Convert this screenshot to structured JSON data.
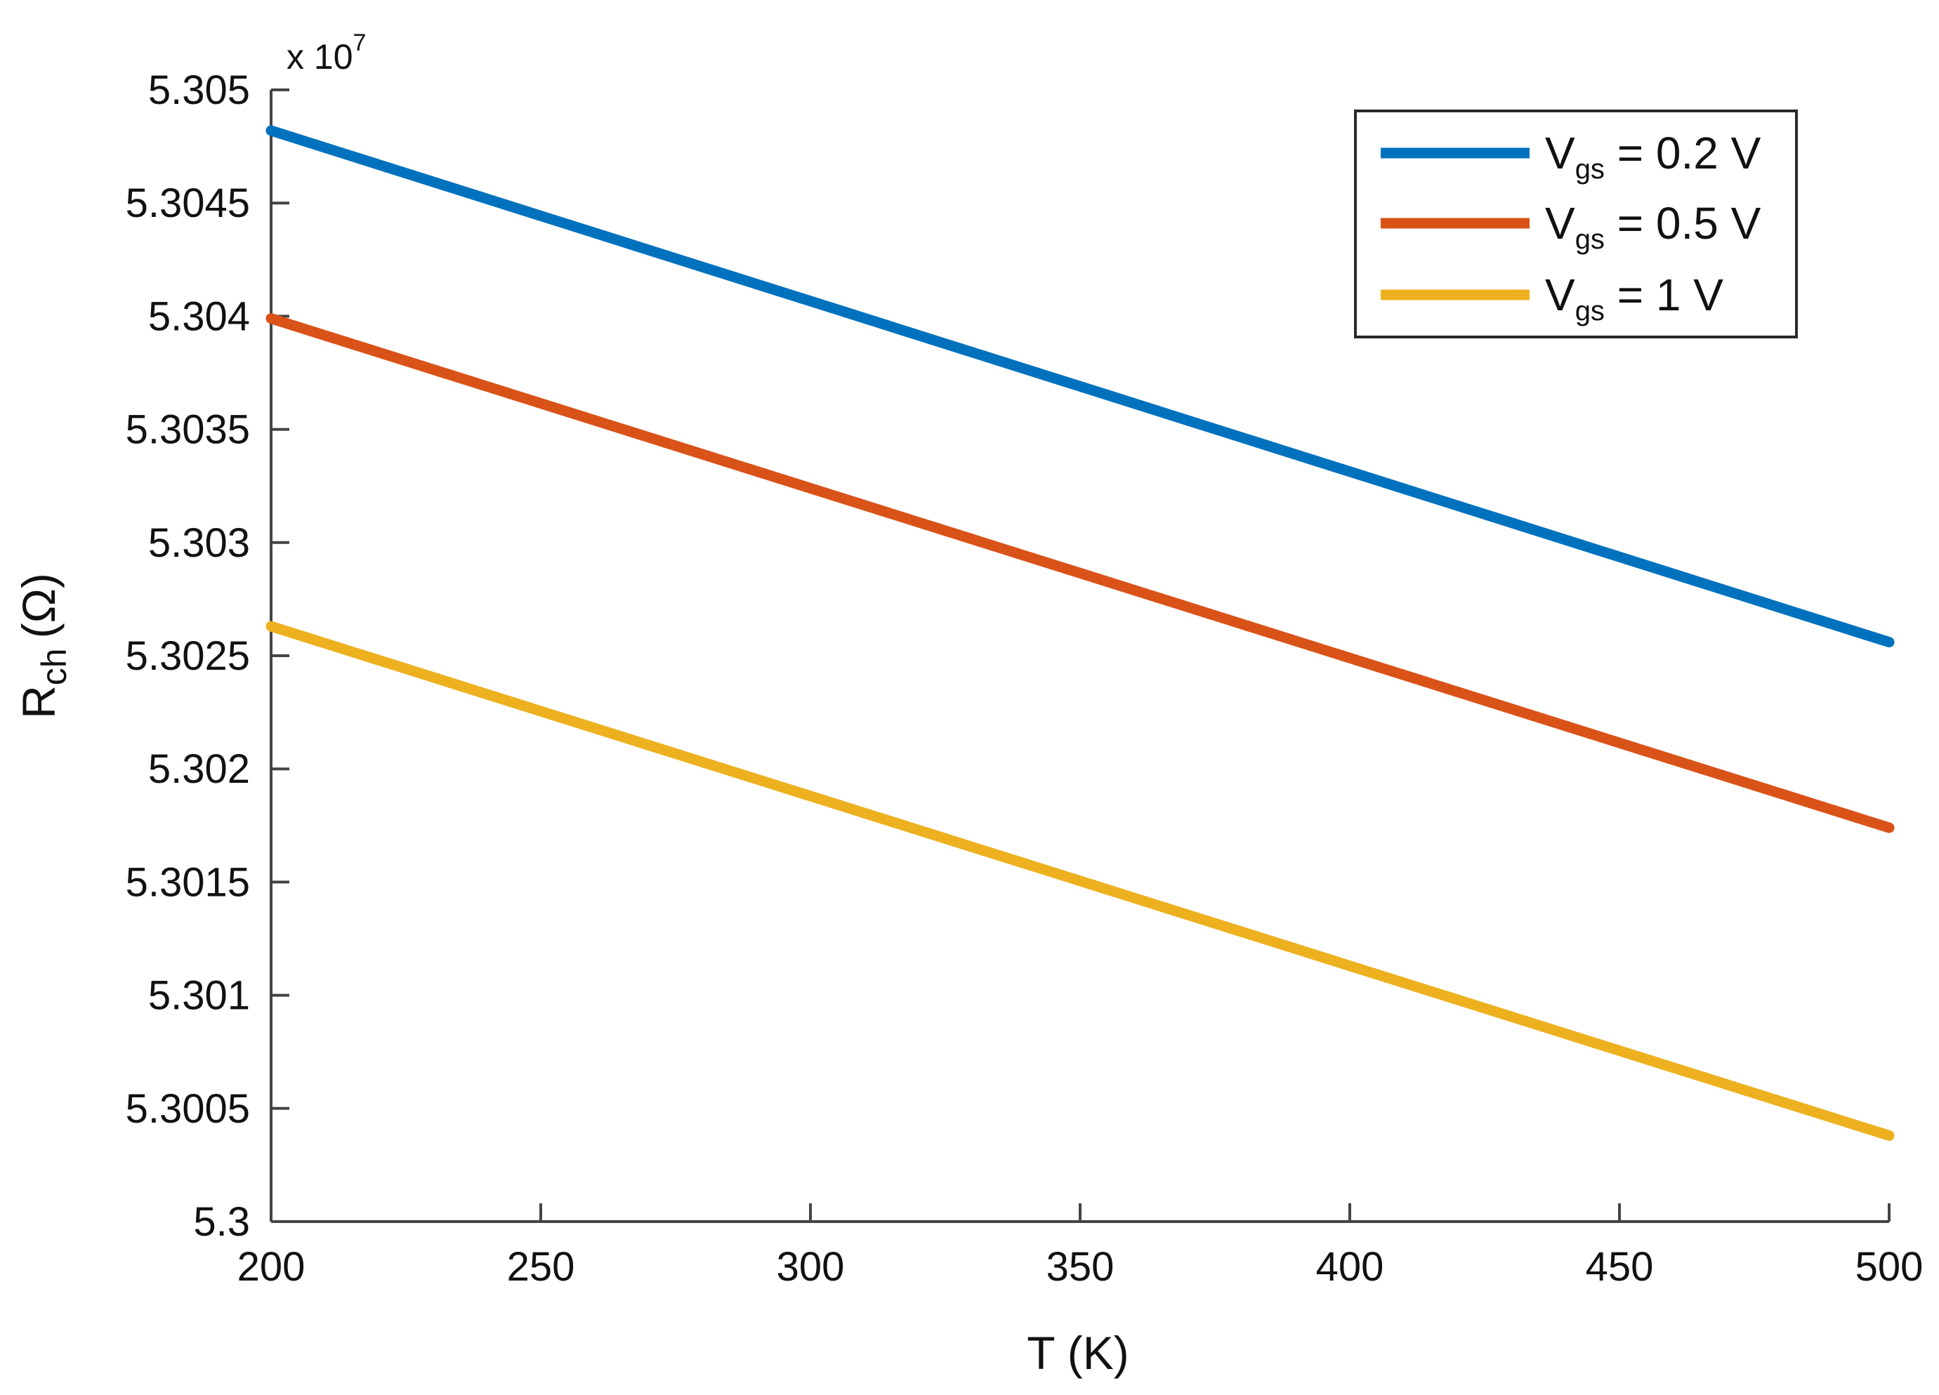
{
  "chart_data": {
    "type": "line",
    "xlabel": "T (K)",
    "ylabel_main": "R",
    "ylabel_sub": "ch",
    "ylabel_unit": "(Ω)",
    "y_exponent_prefix": "x 10",
    "y_exponent_power": "7",
    "xlim": [
      200,
      500
    ],
    "ylim": [
      5.3,
      5.305
    ],
    "x_ticks": [
      200,
      250,
      300,
      350,
      400,
      450,
      500
    ],
    "x_tick_labels": [
      "200",
      "250",
      "300",
      "350",
      "400",
      "450",
      "500"
    ],
    "y_ticks": [
      5.3,
      5.3005,
      5.301,
      5.3015,
      5.302,
      5.3025,
      5.303,
      5.3035,
      5.304,
      5.3045,
      5.305
    ],
    "y_tick_labels": [
      "5.3",
      "5.3005",
      "5.301",
      "5.3015",
      "5.302",
      "5.3025",
      "5.303",
      "5.3035",
      "5.304",
      "5.3045",
      "5.305"
    ],
    "grid": false,
    "legend_position": "top-right",
    "series": [
      {
        "name": "Vgs = 0.2 V",
        "legend_v": "V",
        "legend_sub": "gs",
        "legend_rest": " = 0.2 V",
        "color": "#0072BD",
        "x": [
          200,
          500
        ],
        "y": [
          5.30482,
          5.30256
        ]
      },
      {
        "name": "Vgs = 0.5 V",
        "legend_v": "V",
        "legend_sub": "gs",
        "legend_rest": " = 0.5 V",
        "color": "#D95319",
        "x": [
          200,
          500
        ],
        "y": [
          5.30399,
          5.30174
        ]
      },
      {
        "name": "Vgs = 1 V",
        "legend_v": "V",
        "legend_sub": "gs",
        "legend_rest": " = 1 V",
        "color": "#EDB120",
        "x": [
          200,
          500
        ],
        "y": [
          5.30263,
          5.30038
        ]
      }
    ]
  }
}
